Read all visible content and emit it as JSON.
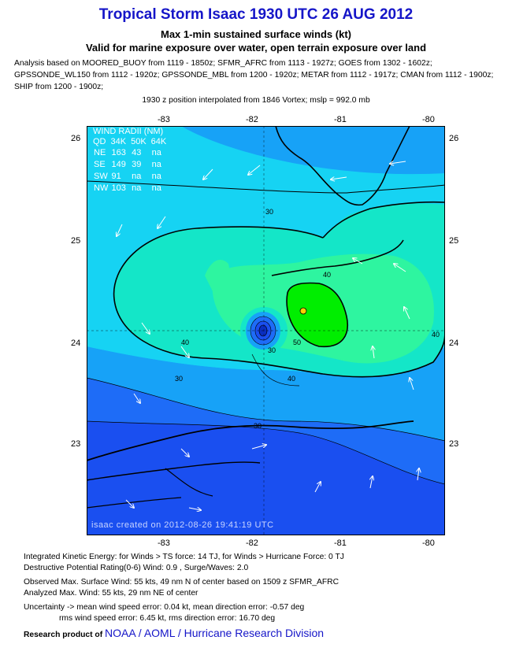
{
  "header": {
    "title": "Tropical Storm Isaac 1930 UTC 26 AUG 2012",
    "subtitle1": "Max 1-min sustained surface winds (kt)",
    "subtitle2": "Valid for marine exposure over water, open terrain exposure over land",
    "analysis_line1": "Analysis based on MOORED_BUOY from 1119 - 1850z; SFMR_AFRC from 1113 - 1927z; GOES from 1302 - 1602z;",
    "analysis_line2": "GPSSONDE_WL150 from 1112 - 1920z; GPSSONDE_MBL from 1200 - 1920z; METAR from 1112 - 1917z; CMAN from 1112 - 1900z;",
    "analysis_line3": "SHIP from 1200 - 1900z;",
    "interp_note": "1930 z position interpolated from 1846 Vortex; mslp = 992.0 mb"
  },
  "map": {
    "lon_ticks": [
      "-83",
      "-82",
      "-81",
      "-80"
    ],
    "lat_ticks": [
      "26",
      "25",
      "24",
      "23"
    ],
    "wind_radii": {
      "title": "WIND RADII (NM)",
      "header": [
        "QD",
        "34K",
        "50K",
        "64K"
      ],
      "rows": [
        [
          "NE",
          "163",
          "43",
          "na"
        ],
        [
          "SE",
          "149",
          "39",
          "na"
        ],
        [
          "SW",
          "91",
          "na",
          "na"
        ],
        [
          "NW",
          "103",
          "na",
          "na"
        ]
      ]
    },
    "contour_labels": [
      "30",
      "40",
      "50",
      "40",
      "30",
      "30",
      "40",
      "30",
      "40"
    ],
    "created_stamp": "isaac   created on 2012-08-26 19:41:19 UTC",
    "colors": {
      "band_20": "#1a4ff0",
      "band_25": "#1e6cf7",
      "band_30": "#17a2f7",
      "band_35": "#16d3f3",
      "band_40": "#14e6c8",
      "band_45": "#2ef5a0",
      "band_50": "#00ee00"
    }
  },
  "footer": {
    "ike_line": "Integrated Kinetic Energy: for Winds > TS force: 14 TJ, for Winds > Hurricane Force: 0 TJ",
    "dpr_line": "Destructive Potential Rating(0-6)  Wind: 0.9 , Surge/Waves: 2.0",
    "obs_line": "Observed Max. Surface Wind: 55 kts, 49 nm N of center based on 1509 z SFMR_AFRC",
    "ana_line": "Analyzed Max. Wind: 55 kts, 29 nm  NE of center",
    "unc_line1": "Uncertainty -> mean wind speed error: 0.04 kt, mean direction error:  -0.57 deg",
    "unc_line2": "rms wind speed error: 6.45 kt, rms direction error: 16.70 deg",
    "credit_prefix": "Research product of",
    "credit_org": "NOAA / AOML / Hurricane Research Division"
  }
}
